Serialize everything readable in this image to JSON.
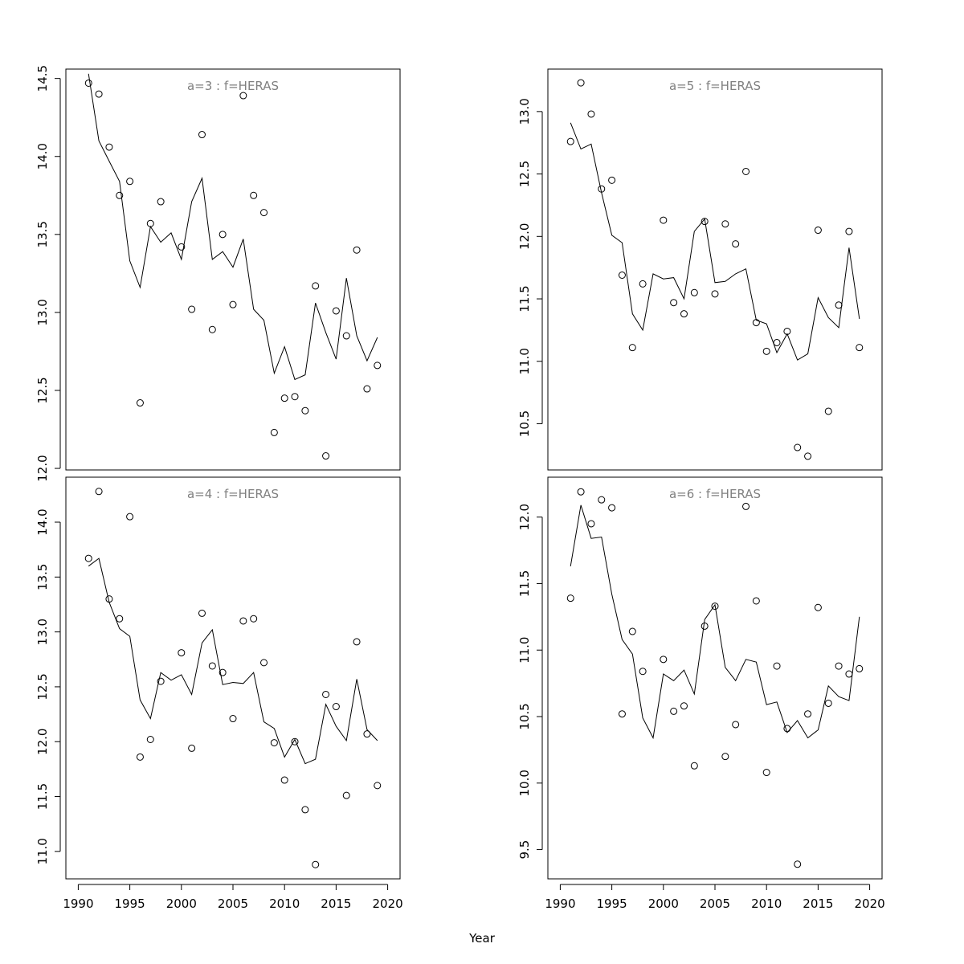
{
  "chart_data": {
    "type": "scatter",
    "xlabel": "Year",
    "x_ticks": [
      1990,
      1995,
      2000,
      2005,
      2010,
      2015,
      2020
    ],
    "layout": "2x2 grid",
    "panels": [
      {
        "title": "a=3  :  f=HERAS",
        "position": "top-left",
        "ylim": [
          11.99,
          14.56
        ],
        "y_ticks": [
          "12.0",
          "12.5",
          "13.0",
          "13.5",
          "14.0",
          "14.5"
        ],
        "show_x_axis": false,
        "points": {
          "x": [
            1991,
            1992,
            1993,
            1994,
            1995,
            1996,
            1997,
            1998,
            2000,
            2001,
            2002,
            2003,
            2004,
            2005,
            2006,
            2007,
            2008,
            2009,
            2010,
            2011,
            2012,
            2013,
            2014,
            2015,
            2016,
            2017,
            2018,
            2019
          ],
          "y": [
            14.47,
            14.4,
            14.06,
            13.75,
            13.84,
            12.42,
            13.57,
            13.71,
            13.42,
            13.02,
            14.14,
            12.89,
            13.5,
            13.05,
            14.39,
            13.75,
            13.64,
            12.23,
            12.45,
            12.46,
            12.37,
            13.17,
            12.08,
            13.01,
            12.85,
            13.4,
            12.51,
            12.66
          ]
        },
        "line": {
          "x": [
            1991,
            1992,
            1993,
            1994,
            1995,
            1996,
            1997,
            1998,
            1999,
            2000,
            2001,
            2002,
            2003,
            2004,
            2005,
            2006,
            2007,
            2008,
            2009,
            2010,
            2011,
            2012,
            2013,
            2014,
            2015,
            2016,
            2017,
            2018,
            2019
          ],
          "y": [
            14.53,
            14.1,
            13.97,
            13.84,
            13.33,
            13.16,
            13.55,
            13.45,
            13.51,
            13.34,
            13.71,
            13.86,
            13.34,
            13.39,
            13.29,
            13.47,
            13.02,
            12.95,
            12.61,
            12.78,
            12.57,
            12.6,
            13.06,
            12.87,
            12.7,
            13.22,
            12.85,
            12.69,
            12.84
          ]
        }
      },
      {
        "title": "a=5  :  f=HERAS",
        "position": "top-right",
        "ylim": [
          10.13,
          13.34
        ],
        "y_ticks": [
          "10.5",
          "11.0",
          "11.5",
          "12.0",
          "12.5",
          "13.0"
        ],
        "show_x_axis": false,
        "points": {
          "x": [
            1991,
            1992,
            1993,
            1994,
            1995,
            1996,
            1997,
            1998,
            2000,
            2001,
            2002,
            2003,
            2004,
            2005,
            2006,
            2007,
            2008,
            2009,
            2010,
            2011,
            2012,
            2013,
            2014,
            2015,
            2016,
            2017,
            2018,
            2019
          ],
          "y": [
            12.76,
            13.23,
            12.98,
            12.38,
            12.45,
            11.69,
            11.11,
            11.62,
            12.13,
            11.47,
            11.38,
            11.55,
            12.12,
            11.54,
            12.1,
            11.94,
            12.52,
            11.31,
            11.08,
            11.15,
            11.24,
            10.31,
            10.24,
            12.05,
            10.6,
            11.45,
            12.04,
            11.11
          ]
        },
        "line": {
          "x": [
            1991,
            1992,
            1993,
            1994,
            1995,
            1996,
            1997,
            1998,
            1999,
            2000,
            2001,
            2002,
            2003,
            2004,
            2005,
            2006,
            2007,
            2008,
            2009,
            2010,
            2011,
            2012,
            2013,
            2014,
            2015,
            2016,
            2017,
            2018,
            2019
          ],
          "y": [
            12.91,
            12.7,
            12.74,
            12.35,
            12.01,
            11.95,
            11.38,
            11.25,
            11.7,
            11.66,
            11.67,
            11.5,
            12.04,
            12.14,
            11.63,
            11.64,
            11.7,
            11.74,
            11.33,
            11.3,
            11.07,
            11.22,
            11.01,
            11.06,
            11.51,
            11.35,
            11.27,
            11.91,
            11.34
          ]
        }
      },
      {
        "title": "a=4  :  f=HERAS",
        "position": "bottom-left",
        "ylim": [
          10.75,
          14.41
        ],
        "y_ticks": [
          "11.0",
          "11.5",
          "12.0",
          "12.5",
          "13.0",
          "13.5",
          "14.0"
        ],
        "show_x_axis": true,
        "points": {
          "x": [
            1991,
            1992,
            1993,
            1994,
            1995,
            1996,
            1997,
            1998,
            2000,
            2001,
            2002,
            2003,
            2004,
            2005,
            2006,
            2007,
            2008,
            2009,
            2010,
            2011,
            2012,
            2013,
            2014,
            2015,
            2016,
            2017,
            2018,
            2019
          ],
          "y": [
            13.67,
            14.28,
            13.3,
            13.12,
            14.05,
            11.86,
            12.02,
            12.55,
            12.81,
            11.94,
            13.17,
            12.69,
            12.63,
            12.21,
            13.1,
            13.12,
            12.72,
            11.99,
            11.65,
            12.0,
            11.38,
            10.88,
            12.43,
            12.32,
            11.51,
            12.91,
            12.07,
            11.6
          ]
        },
        "line": {
          "x": [
            1991,
            1992,
            1993,
            1994,
            1995,
            1996,
            1997,
            1998,
            1999,
            2000,
            2001,
            2002,
            2003,
            2004,
            2005,
            2006,
            2007,
            2008,
            2009,
            2010,
            2011,
            2012,
            2013,
            2014,
            2015,
            2016,
            2017,
            2018,
            2019
          ],
          "y": [
            13.6,
            13.67,
            13.27,
            13.03,
            12.96,
            12.38,
            12.21,
            12.63,
            12.56,
            12.61,
            12.43,
            12.9,
            13.02,
            12.52,
            12.54,
            12.53,
            12.63,
            12.18,
            12.12,
            11.86,
            12.02,
            11.8,
            11.84,
            12.34,
            12.14,
            12.01,
            12.57,
            12.11,
            12.01
          ]
        }
      },
      {
        "title": "a=6  :  f=HERAS",
        "position": "bottom-right",
        "ylim": [
          9.28,
          12.3
        ],
        "y_ticks": [
          "9.5",
          "10.0",
          "10.5",
          "11.0",
          "11.5",
          "12.0"
        ],
        "show_x_axis": true,
        "points": {
          "x": [
            1991,
            1992,
            1993,
            1994,
            1995,
            1996,
            1997,
            1998,
            2000,
            2001,
            2002,
            2003,
            2004,
            2005,
            2006,
            2007,
            2008,
            2009,
            2010,
            2011,
            2012,
            2013,
            2014,
            2015,
            2016,
            2017,
            2018,
            2019
          ],
          "y": [
            11.39,
            12.19,
            11.95,
            12.13,
            12.07,
            10.52,
            11.14,
            10.84,
            10.93,
            10.54,
            10.58,
            10.13,
            11.18,
            11.33,
            10.2,
            10.44,
            12.08,
            11.37,
            10.08,
            10.88,
            10.41,
            9.39,
            10.52,
            11.32,
            10.6,
            10.88,
            10.82,
            10.86
          ]
        },
        "line": {
          "x": [
            1991,
            1992,
            1993,
            1994,
            1995,
            1996,
            1997,
            1998,
            1999,
            2000,
            2001,
            2002,
            2003,
            2004,
            2005,
            2006,
            2007,
            2008,
            2009,
            2010,
            2011,
            2012,
            2013,
            2014,
            2015,
            2016,
            2017,
            2018,
            2019
          ],
          "y": [
            11.63,
            12.09,
            11.84,
            11.85,
            11.42,
            11.08,
            10.97,
            10.49,
            10.34,
            10.82,
            10.77,
            10.85,
            10.67,
            11.23,
            11.34,
            10.87,
            10.77,
            10.93,
            10.91,
            10.59,
            10.61,
            10.38,
            10.47,
            10.34,
            10.4,
            10.73,
            10.65,
            10.62,
            11.25
          ]
        }
      }
    ],
    "xlim": [
      1988.8,
      2021.2
    ]
  }
}
